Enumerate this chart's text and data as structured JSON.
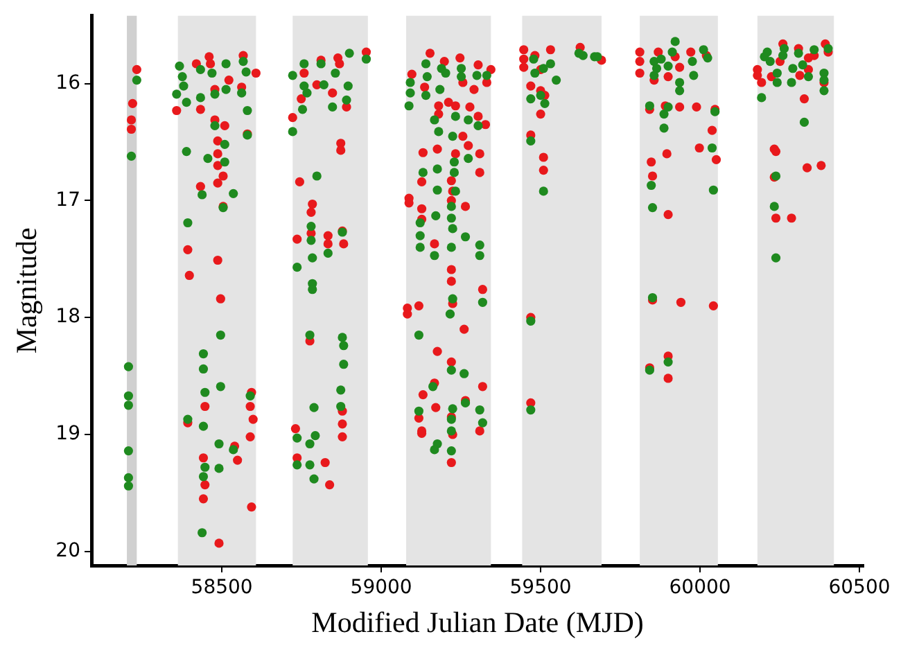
{
  "chart_data": {
    "type": "scatter",
    "xlabel": "Modified Julian Date (MJD)",
    "ylabel": "Magnitude",
    "xlim": [
      58091,
      60513
    ],
    "xticks": [
      58500,
      59000,
      59500,
      60000,
      60500
    ],
    "ylim": [
      20.12,
      15.42
    ],
    "yticks": [
      16,
      17,
      18,
      19,
      20
    ],
    "grid": false,
    "legend": false,
    "marker": "circle",
    "bands": [
      {
        "axis": "x",
        "from": 58202,
        "to": 58233,
        "color": "#d0d0d0"
      },
      {
        "axis": "x",
        "from": 58362,
        "to": 58607,
        "color": "#e4e4e4"
      },
      {
        "axis": "x",
        "from": 58722,
        "to": 58958,
        "color": "#e4e4e4"
      },
      {
        "axis": "x",
        "from": 59078,
        "to": 59344,
        "color": "#e4e4e4"
      },
      {
        "axis": "x",
        "from": 59442,
        "to": 59691,
        "color": "#e4e4e4"
      },
      {
        "axis": "x",
        "from": 59811,
        "to": 60056,
        "color": "#e4e4e4"
      },
      {
        "axis": "x",
        "from": 60180,
        "to": 60420,
        "color": "#e4e4e4"
      }
    ],
    "series": [
      {
        "color": "#1f8a1f",
        "x": [
          58216,
          58233,
          58207,
          58207,
          58207,
          58207,
          58207,
          58207,
          58367,
          58376,
          58380,
          58358,
          58389,
          58433,
          58433,
          58469,
          58478,
          58513,
          58513,
          58567,
          58576,
          58562,
          58580,
          58580,
          58478,
          58509,
          58509,
          58456,
          58389,
          58438,
          58504,
          58536,
          58393,
          58496,
          58442,
          58442,
          58447,
          58496,
          58442,
          58393,
          58491,
          58491,
          58447,
          58442,
          58536,
          58589,
          58438,
          58722,
          58722,
          58753,
          58758,
          58758,
          58767,
          58811,
          58820,
          58847,
          58856,
          58900,
          58896,
          58891,
          58953,
          58798,
          58780,
          58780,
          58784,
          58833,
          58878,
          58736,
          58784,
          58784,
          58776,
          58878,
          58882,
          58882,
          58873,
          58873,
          58789,
          58736,
          58776,
          58793,
          58736,
          58776,
          58789,
          59091,
          59091,
          59087,
          59140,
          59144,
          59140,
          59189,
          59184,
          59202,
          59251,
          59251,
          59300,
          59331,
          59167,
          59180,
          59224,
          59233,
          59273,
          59304,
          59229,
          59273,
          59131,
          59176,
          59229,
          59176,
          59233,
          59220,
          59220,
          59224,
          59122,
          59122,
          59122,
          59171,
          59167,
          59220,
          59264,
          59309,
          59309,
          59224,
          59216,
          59318,
          59118,
          59220,
          59260,
          59162,
          59118,
          59224,
          59264,
          59309,
          59318,
          59220,
          59220,
          59176,
          59167,
          59220,
          59478,
          59482,
          59509,
          59531,
          59549,
          59500,
          59469,
          59513,
          59469,
          59509,
          59469,
          59469,
          59620,
          59633,
          59669,
          59678,
          59922,
          59856,
          59864,
          59878,
          59900,
          59913,
          59976,
          60011,
          60024,
          59856,
          59936,
          59936,
          59980,
          59842,
          59887,
          59900,
          59887,
          60038,
          60047,
          59847,
          59851,
          60042,
          59851,
          59900,
          59842,
          60211,
          60220,
          60242,
          60264,
          60260,
          60287,
          60309,
          60322,
          60340,
          60358,
          60402,
          60389,
          60389,
          60389,
          60193,
          60327,
          60238,
          60233,
          60238,
          60291,
          60202,
          60242
        ],
        "values": [
          16.62,
          15.97,
          18.42,
          18.67,
          18.75,
          19.14,
          19.37,
          19.44,
          15.85,
          15.94,
          16.02,
          16.09,
          16.16,
          16.12,
          15.88,
          15.91,
          16.09,
          15.83,
          16.05,
          15.81,
          15.9,
          16.08,
          16.23,
          16.44,
          16.36,
          16.52,
          16.67,
          16.64,
          16.58,
          16.95,
          17.06,
          16.94,
          17.19,
          18.15,
          18.31,
          18.44,
          18.64,
          18.59,
          18.93,
          18.87,
          19.08,
          19.29,
          19.28,
          19.36,
          19.13,
          18.67,
          19.84,
          15.93,
          16.41,
          16.22,
          15.83,
          16.02,
          16.08,
          15.83,
          16.01,
          16.2,
          15.91,
          15.74,
          16.02,
          16.14,
          15.79,
          16.79,
          17.22,
          17.34,
          17.49,
          17.45,
          17.27,
          17.57,
          17.71,
          17.76,
          18.15,
          18.17,
          18.24,
          18.4,
          18.62,
          18.76,
          18.77,
          19.03,
          19.08,
          19.01,
          19.26,
          19.26,
          19.38,
          15.99,
          16.08,
          16.19,
          15.83,
          15.94,
          16.1,
          15.87,
          16.05,
          15.91,
          15.87,
          15.94,
          15.93,
          15.93,
          16.31,
          16.41,
          16.45,
          16.28,
          16.31,
          16.36,
          16.67,
          16.64,
          16.76,
          16.73,
          16.76,
          16.91,
          16.92,
          17.05,
          17.15,
          17.24,
          17.19,
          17.3,
          17.4,
          17.13,
          17.47,
          17.4,
          17.31,
          17.38,
          17.47,
          17.84,
          17.97,
          17.87,
          18.15,
          18.45,
          18.48,
          18.59,
          18.8,
          18.78,
          18.73,
          18.79,
          18.9,
          18.87,
          18.97,
          19.08,
          19.13,
          19.14,
          15.79,
          15.91,
          15.87,
          15.83,
          15.97,
          16.1,
          16.13,
          16.17,
          16.49,
          16.92,
          18.03,
          18.79,
          15.74,
          15.76,
          15.77,
          15.77,
          15.64,
          15.81,
          15.87,
          15.79,
          15.85,
          15.73,
          15.81,
          15.71,
          15.78,
          15.93,
          15.99,
          16.06,
          15.93,
          16.19,
          16.26,
          16.2,
          16.38,
          16.55,
          16.24,
          16.87,
          17.06,
          16.91,
          17.83,
          18.38,
          18.45,
          15.73,
          15.81,
          15.91,
          15.7,
          15.76,
          15.99,
          15.74,
          15.84,
          15.94,
          15.71,
          15.7,
          15.91,
          15.97,
          16.06,
          16.12,
          16.33,
          16.79,
          17.05,
          17.49,
          15.87,
          15.77,
          15.99
        ]
      },
      {
        "color": "#e8191c",
        "x": [
          58233,
          58220,
          58216,
          58216,
          58420,
          58460,
          58464,
          58567,
          58607,
          58358,
          58433,
          58478,
          58522,
          58562,
          58478,
          58509,
          58487,
          58487,
          58487,
          58504,
          58487,
          58580,
          58433,
          58504,
          58393,
          58487,
          58398,
          58496,
          58447,
          58393,
          58589,
          58598,
          58589,
          58593,
          58442,
          58447,
          58442,
          58540,
          58549,
          58593,
          58491,
          58722,
          58749,
          58758,
          58798,
          58811,
          58864,
          58869,
          58891,
          58847,
          58953,
          58873,
          58873,
          58744,
          58784,
          58780,
          58736,
          58780,
          58833,
          58833,
          58882,
          58878,
          58776,
          58731,
          58736,
          58824,
          58838,
          58878,
          58878,
          58878,
          59096,
          59153,
          59198,
          59247,
          59304,
          59344,
          59256,
          59291,
          59331,
          59136,
          59211,
          59180,
          59180,
          59233,
          59278,
          59304,
          59327,
          59256,
          59131,
          59176,
          59233,
          59273,
          59309,
          59127,
          59220,
          59224,
          59220,
          59264,
          59087,
          59087,
          59127,
          59127,
          59167,
          59309,
          59220,
          59220,
          59318,
          59224,
          59082,
          59082,
          59118,
          59176,
          59260,
          59220,
          59167,
          59131,
          59118,
          59127,
          59127,
          59171,
          59220,
          59224,
          59264,
          59318,
          59309,
          59220,
          59447,
          59447,
          59447,
          59482,
          59531,
          59500,
          59469,
          59500,
          59513,
          59500,
          59469,
          59509,
          59509,
          59469,
          59469,
          59624,
          59691,
          59811,
          59811,
          59811,
          59869,
          59922,
          59971,
          60020,
          59856,
          59900,
          59936,
          59842,
          59891,
          59936,
          59989,
          60047,
          59998,
          60038,
          60051,
          59847,
          59851,
          59896,
          59900,
          59851,
          59940,
          60042,
          59842,
          59900,
          59900,
          60180,
          60180,
          60193,
          60224,
          60260,
          60251,
          60309,
          60340,
          60358,
          60393,
          60402,
          60313,
          60340,
          60389,
          60327,
          60233,
          60238,
          60233,
          60238,
          60287,
          60336,
          60380
        ],
        "values": [
          15.88,
          16.17,
          16.31,
          16.39,
          15.83,
          15.77,
          15.83,
          15.76,
          15.91,
          16.23,
          16.22,
          16.05,
          15.97,
          16.03,
          16.31,
          16.36,
          16.49,
          16.6,
          16.7,
          16.79,
          16.85,
          16.43,
          16.88,
          17.05,
          17.42,
          17.51,
          17.64,
          17.84,
          18.76,
          18.9,
          18.76,
          18.87,
          19.02,
          18.64,
          19.2,
          19.43,
          19.55,
          19.1,
          19.22,
          19.62,
          19.93,
          16.29,
          16.13,
          15.91,
          16.01,
          15.8,
          15.78,
          15.83,
          16.2,
          16.08,
          15.73,
          16.51,
          16.57,
          16.84,
          17.03,
          17.1,
          17.33,
          17.28,
          17.3,
          17.37,
          17.37,
          17.26,
          18.2,
          18.95,
          19.2,
          19.24,
          19.43,
          18.8,
          18.91,
          19.02,
          15.92,
          15.74,
          15.81,
          15.78,
          15.84,
          15.88,
          15.99,
          16.05,
          15.99,
          16.03,
          16.16,
          16.19,
          16.26,
          16.19,
          16.2,
          16.28,
          16.35,
          16.45,
          16.59,
          16.56,
          16.6,
          16.53,
          16.6,
          16.84,
          16.83,
          16.92,
          17.0,
          17.05,
          16.98,
          17.02,
          17.07,
          17.16,
          17.37,
          16.76,
          17.59,
          17.69,
          17.76,
          17.88,
          17.92,
          17.97,
          17.9,
          18.29,
          18.1,
          18.38,
          18.56,
          18.66,
          18.86,
          18.97,
          18.99,
          18.77,
          18.85,
          19.0,
          18.71,
          18.59,
          18.97,
          19.24,
          15.71,
          15.79,
          15.86,
          15.76,
          15.71,
          15.88,
          16.02,
          16.06,
          16.1,
          16.26,
          16.44,
          16.63,
          16.74,
          18.0,
          18.73,
          15.69,
          15.8,
          15.73,
          15.81,
          15.91,
          15.73,
          15.77,
          15.73,
          15.76,
          15.97,
          15.94,
          15.86,
          16.22,
          16.19,
          16.2,
          16.2,
          16.22,
          16.55,
          16.4,
          16.65,
          16.67,
          16.79,
          16.6,
          17.12,
          17.85,
          17.87,
          17.9,
          18.43,
          18.33,
          18.52,
          15.88,
          15.93,
          15.99,
          15.94,
          15.66,
          15.81,
          15.7,
          15.78,
          15.76,
          15.66,
          15.73,
          15.93,
          15.88,
          15.99,
          16.13,
          16.56,
          16.58,
          16.8,
          17.15,
          17.15,
          16.72,
          16.7
        ]
      }
    ]
  }
}
